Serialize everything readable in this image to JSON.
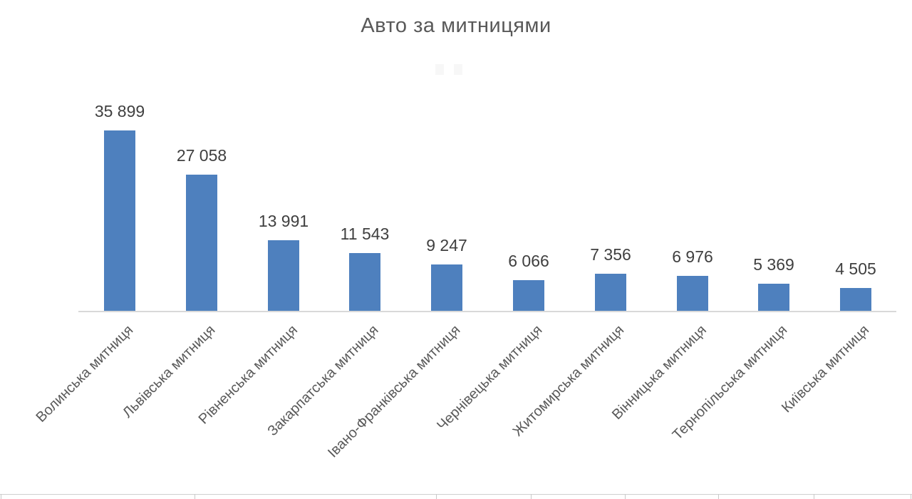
{
  "title": "Авто за митницями",
  "chart_data": {
    "type": "bar",
    "title": "Авто за митницями",
    "categories": [
      "Волинська митниця",
      "Львівська митниця",
      "Рівненська митниця",
      "Закарпатська митниця",
      "Івано-Франківська митниця",
      "Чернівецька митниця",
      "Житомирська митниця",
      "Вінницька митниця",
      "Тернопільська митниця",
      "Київська митниця"
    ],
    "values": [
      35899,
      27058,
      13991,
      11543,
      9247,
      6066,
      7356,
      6976,
      5369,
      4505
    ],
    "value_labels": [
      "35 899",
      "27 058",
      "13 991",
      "11 543",
      "9 247",
      "6 066",
      "7 356",
      "6 976",
      "5 369",
      "4 505"
    ],
    "xlabel": "",
    "ylabel": "",
    "ylim": [
      0,
      36000
    ],
    "grid": false,
    "legend": false,
    "bar_color": "#4e80be",
    "value_label_color": "#3f3f3f",
    "category_label_color": "#595959",
    "title_color": "#595959",
    "axis_line_color": "#d9d9d9"
  }
}
